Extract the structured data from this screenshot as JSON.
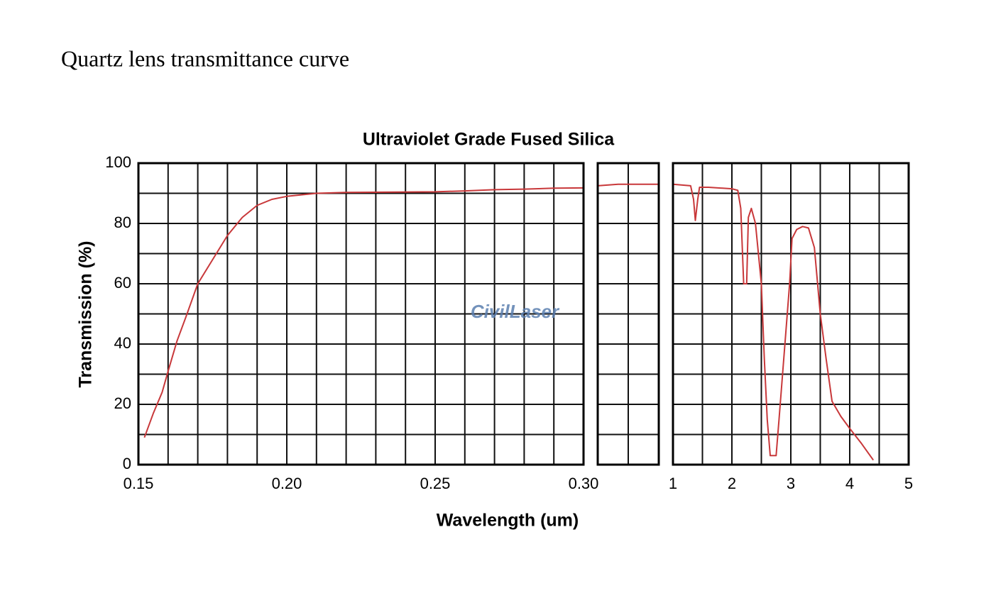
{
  "heading": "Quartz lens transmittance curve",
  "watermark": "CivilLaser",
  "chart_data": {
    "type": "line",
    "title": "Ultraviolet Grade Fused Silica",
    "x_label": "Wavelength (um)",
    "y_label": "Transmission (%)",
    "color": "#c8383a",
    "grid": true,
    "ylim": [
      0,
      100
    ],
    "yticks": [
      0,
      20,
      40,
      60,
      80,
      100
    ],
    "yminor": [
      10,
      30,
      50,
      70,
      90
    ],
    "panels": [
      {
        "xlim": [
          0.15,
          0.3
        ],
        "xticks": [
          0.15,
          {
            "value": 0.2,
            "label": "0.20"
          },
          0.25,
          {
            "value": 0.3,
            "label": "0.30"
          }
        ],
        "xminor": [
          0.16,
          0.17,
          0.18,
          0.19,
          0.21,
          0.22,
          0.23,
          0.24,
          0.26,
          0.27,
          0.28,
          0.29
        ],
        "x": [
          0.152,
          0.155,
          0.158,
          0.16,
          0.163,
          0.166,
          0.17,
          0.175,
          0.18,
          0.185,
          0.19,
          0.195,
          0.2,
          0.21,
          0.22,
          0.25,
          0.26,
          0.27,
          0.28,
          0.29,
          0.3
        ],
        "values": [
          9,
          17,
          24,
          31,
          41,
          49,
          60,
          68,
          76,
          82,
          86,
          88,
          89,
          90,
          90.3,
          90.5,
          90.8,
          91.2,
          91.4,
          91.7,
          91.8
        ]
      },
      {
        "values": [
          92.5,
          93,
          93,
          93
        ]
      },
      {
        "xlim": [
          1,
          5
        ],
        "xticks": [
          1,
          2,
          3,
          4,
          5
        ],
        "xminor": [
          1.5,
          2.5,
          3.5,
          4.5
        ],
        "x": [
          1,
          1.3,
          1.35,
          1.38,
          1.42,
          1.45,
          1.6,
          2,
          2.1,
          2.15,
          2.2,
          2.25,
          2.28,
          2.33,
          2.4,
          2.5,
          2.55,
          2.6,
          2.65,
          2.75,
          2.8,
          2.9,
          2.98,
          3.02,
          3.1,
          3.2,
          3.3,
          3.4,
          3.5,
          3.6,
          3.7,
          3.85,
          4,
          4.2,
          4.4
        ],
        "values": [
          93,
          92.5,
          88,
          81,
          88,
          92,
          92,
          91.5,
          91,
          85,
          60,
          60,
          82,
          85,
          80,
          60,
          35,
          15,
          3,
          3,
          15,
          40,
          60,
          75,
          78,
          79,
          78.5,
          72,
          50,
          35,
          21,
          16,
          12,
          7,
          1.5
        ]
      }
    ]
  }
}
